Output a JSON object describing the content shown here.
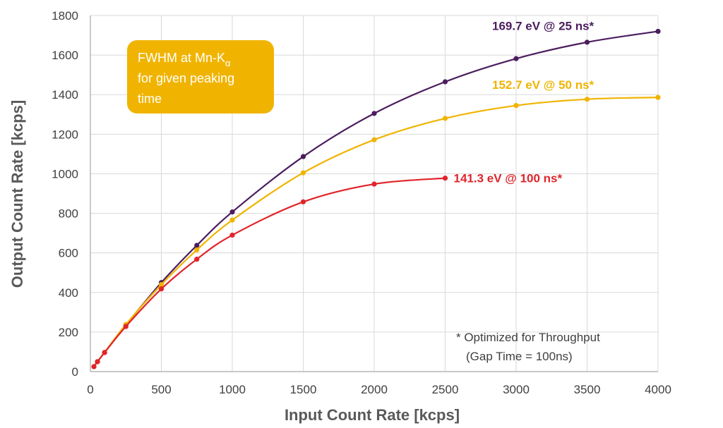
{
  "chart_data": {
    "type": "line",
    "xlabel": "Input Count Rate [kcps]",
    "ylabel": "Output Count Rate [kcps]",
    "xlim": [
      0,
      4000
    ],
    "ylim": [
      0,
      1800
    ],
    "xticks": [
      "0",
      "500",
      "1000",
      "1500",
      "2000",
      "2500",
      "3000",
      "3500",
      "4000"
    ],
    "yticks": [
      "0",
      "200",
      "400",
      "600",
      "800",
      "1000",
      "1200",
      "1400",
      "1600",
      "1800"
    ],
    "grid": true,
    "series": [
      {
        "name": "169.7 eV @ 25 ns*",
        "color": "#4b1d5e",
        "x": [
          25,
          50,
          100,
          250,
          500,
          750,
          1000,
          1500,
          2000,
          2500,
          3000,
          3500,
          4000
        ],
        "y": [
          25,
          50,
          97,
          235,
          450,
          638,
          807,
          1087,
          1305,
          1465,
          1582,
          1665,
          1720
        ]
      },
      {
        "name": "152.7 eV @ 50 ns*",
        "color": "#f0b400",
        "x": [
          25,
          50,
          100,
          250,
          500,
          750,
          1000,
          1500,
          2000,
          2500,
          3000,
          3500,
          4000
        ],
        "y": [
          25,
          50,
          97,
          238,
          440,
          615,
          766,
          1005,
          1172,
          1280,
          1345,
          1377,
          1386
        ]
      },
      {
        "name": "141.3 eV @ 100 ns*",
        "color": "#e0252b",
        "x": [
          25,
          50,
          100,
          250,
          500,
          750,
          1000,
          1500,
          2000,
          2500
        ],
        "y": [
          25,
          50,
          96,
          228,
          418,
          568,
          690,
          858,
          948,
          978
        ]
      }
    ],
    "annotation_box": {
      "line1": "FWHM at Mn-K",
      "line1_subscript": "α",
      "line2": "for given peaking",
      "line3": "time",
      "color": "#f0b400"
    },
    "footnote": {
      "line1": "* Optimized for Throughput",
      "line2": "(Gap Time = 100ns)"
    }
  }
}
